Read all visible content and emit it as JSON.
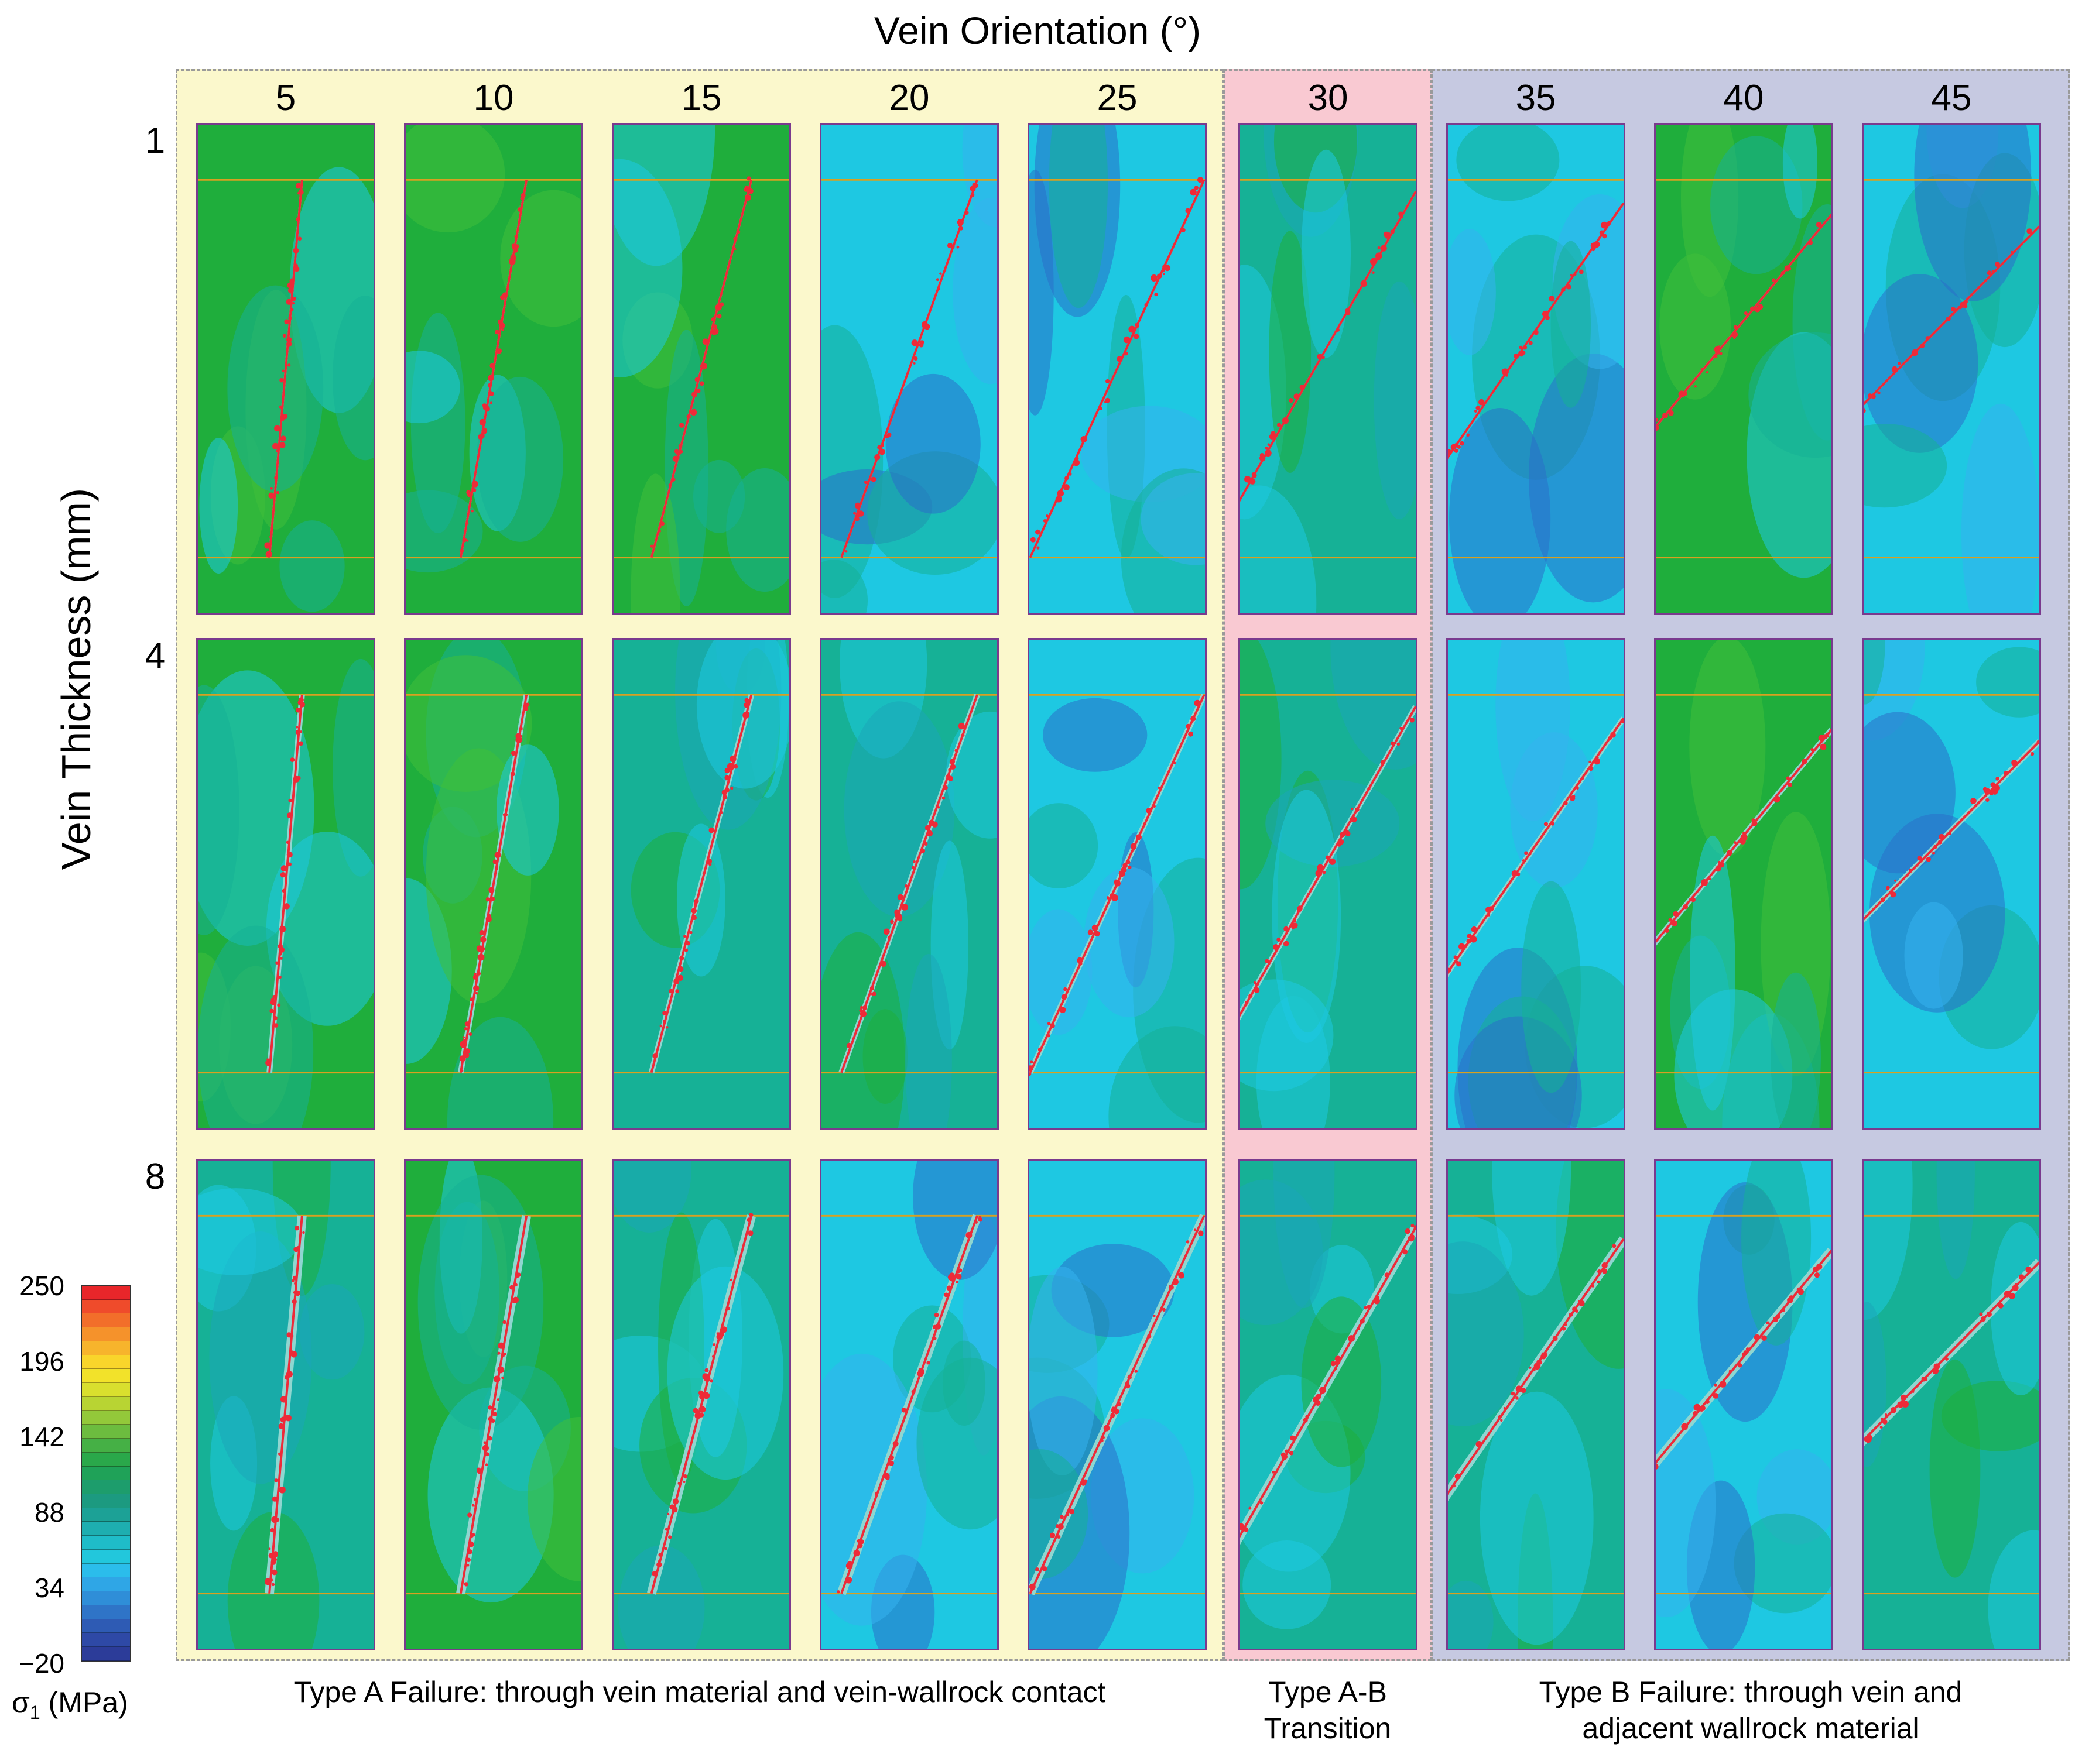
{
  "title": "Vein Orientation (°)",
  "y_axis_label": "Vein Thickness (mm)",
  "orientations": [
    "5",
    "10",
    "15",
    "20",
    "25",
    "30",
    "35",
    "40",
    "45"
  ],
  "thicknesses": [
    "1",
    "4",
    "8"
  ],
  "colorbar": {
    "ticks": [
      "250",
      "196",
      "142",
      "88",
      "34",
      "−20"
    ],
    "label": "σ",
    "label_sub": "1",
    "label_unit": " (MPa)",
    "colors": [
      "#e8262a",
      "#ef4b2b",
      "#f26e2a",
      "#f5922b",
      "#f7b42c",
      "#f9d52b",
      "#f2e22a",
      "#d9df2e",
      "#b8d433",
      "#93c83a",
      "#6cbc3f",
      "#45b045",
      "#2aa84a",
      "#1fa258",
      "#1d9d6c",
      "#1c9a80",
      "#1ca196",
      "#1eaeb0",
      "#1fbcc8",
      "#22c7dc",
      "#2bbdeb",
      "#2fa6e6",
      "#2f8ed8",
      "#2f74c7",
      "#2e5bb4",
      "#2e49a6",
      "#2c3c99"
    ]
  },
  "captions": {
    "type_a": "Type A Failure: through vein material and vein-wallrock contact",
    "type_ab_line1": "Type A-B",
    "type_ab_line2": "Transition",
    "type_b_line1": "Type B Failure: through vein and",
    "type_b_line2": "adjacent wallrock material"
  },
  "panel_colors": {
    "green": "#1fae3c",
    "teal": "#16b196",
    "cyan": "#1ec8e2",
    "blue": "#2a6fc9",
    "fracture": "#ee2a38",
    "layer_line": "#d9a020",
    "vein": "#8fd6d0"
  },
  "panels": [
    {
      "row": 0,
      "col": 0,
      "bg": "green",
      "angle": 5
    },
    {
      "row": 0,
      "col": 1,
      "bg": "green",
      "angle": 10
    },
    {
      "row": 0,
      "col": 2,
      "bg": "green",
      "angle": 15
    },
    {
      "row": 0,
      "col": 3,
      "bg": "cyan",
      "angle": 20
    },
    {
      "row": 0,
      "col": 4,
      "bg": "cyan",
      "angle": 25
    },
    {
      "row": 0,
      "col": 5,
      "bg": "teal",
      "angle": 30
    },
    {
      "row": 0,
      "col": 6,
      "bg": "cyan",
      "angle": 35
    },
    {
      "row": 0,
      "col": 7,
      "bg": "green",
      "angle": 40
    },
    {
      "row": 0,
      "col": 8,
      "bg": "cyan",
      "angle": 45
    },
    {
      "row": 1,
      "col": 0,
      "bg": "green",
      "angle": 5
    },
    {
      "row": 1,
      "col": 1,
      "bg": "green",
      "angle": 10
    },
    {
      "row": 1,
      "col": 2,
      "bg": "teal",
      "angle": 15
    },
    {
      "row": 1,
      "col": 3,
      "bg": "teal",
      "angle": 20
    },
    {
      "row": 1,
      "col": 4,
      "bg": "cyan",
      "angle": 25
    },
    {
      "row": 1,
      "col": 5,
      "bg": "teal",
      "angle": 30
    },
    {
      "row": 1,
      "col": 6,
      "bg": "cyan",
      "angle": 35
    },
    {
      "row": 1,
      "col": 7,
      "bg": "green",
      "angle": 40
    },
    {
      "row": 1,
      "col": 8,
      "bg": "cyan",
      "angle": 45
    },
    {
      "row": 2,
      "col": 0,
      "bg": "teal",
      "angle": 5
    },
    {
      "row": 2,
      "col": 1,
      "bg": "green",
      "angle": 10
    },
    {
      "row": 2,
      "col": 2,
      "bg": "teal",
      "angle": 15
    },
    {
      "row": 2,
      "col": 3,
      "bg": "cyan",
      "angle": 20
    },
    {
      "row": 2,
      "col": 4,
      "bg": "cyan",
      "angle": 25
    },
    {
      "row": 2,
      "col": 5,
      "bg": "teal",
      "angle": 30
    },
    {
      "row": 2,
      "col": 6,
      "bg": "teal",
      "angle": 35
    },
    {
      "row": 2,
      "col": 7,
      "bg": "cyan",
      "angle": 40
    },
    {
      "row": 2,
      "col": 8,
      "bg": "teal",
      "angle": 45
    }
  ]
}
